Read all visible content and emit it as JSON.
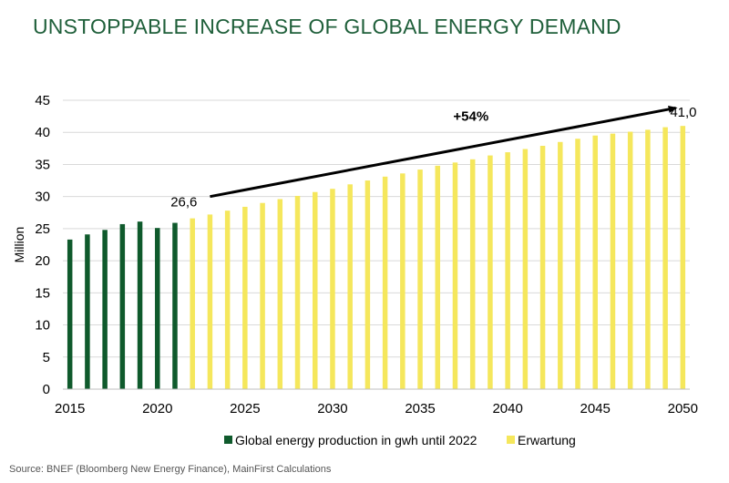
{
  "title": "UNSTOPPABLE INCREASE OF GLOBAL ENERGY DEMAND",
  "source": "Source: BNEF (Bloomberg New Energy Finance), MainFirst Calculations",
  "colors": {
    "actual": "#0f5a2c",
    "forecast": "#f5e75c",
    "title": "#1f5f3a"
  },
  "chart_data": {
    "type": "bar",
    "ylabel": "Million",
    "xlabel": "",
    "ylim": [
      0,
      45
    ],
    "yticks": [
      0,
      5,
      10,
      15,
      20,
      25,
      30,
      35,
      40,
      45
    ],
    "xticks": [
      2015,
      2020,
      2025,
      2030,
      2035,
      2040,
      2045,
      2050
    ],
    "grid": true,
    "legend_position": "bottom",
    "series": [
      {
        "name": "Global energy production in gwh until 2022",
        "x": [
          2015,
          2016,
          2017,
          2018,
          2019,
          2020,
          2021
        ],
        "values": [
          23.3,
          24.1,
          24.8,
          25.7,
          26.1,
          25.1,
          25.9
        ]
      },
      {
        "name": "Erwartung",
        "x": [
          2022,
          2023,
          2024,
          2025,
          2026,
          2027,
          2028,
          2029,
          2030,
          2031,
          2032,
          2033,
          2034,
          2035,
          2036,
          2037,
          2038,
          2039,
          2040,
          2041,
          2042,
          2043,
          2044,
          2045,
          2046,
          2047,
          2048,
          2049,
          2050
        ],
        "values": [
          26.6,
          27.2,
          27.8,
          28.4,
          29.0,
          29.6,
          30.1,
          30.7,
          31.2,
          31.9,
          32.5,
          33.1,
          33.6,
          34.2,
          34.8,
          35.3,
          35.8,
          36.4,
          36.9,
          37.4,
          37.9,
          38.5,
          39.0,
          39.5,
          39.8,
          40.1,
          40.4,
          40.8,
          41.0
        ]
      }
    ],
    "annotations": {
      "start_label": "26,6",
      "end_label": "41,0",
      "change_label": "+54%"
    }
  }
}
